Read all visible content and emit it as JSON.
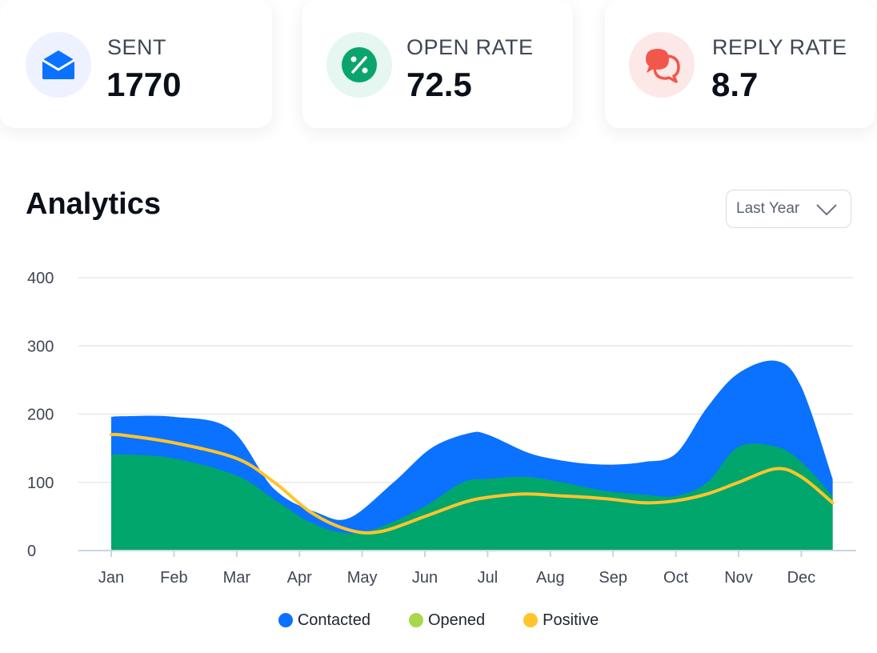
{
  "stats": [
    {
      "label": "SENT",
      "value": "1770",
      "icon": "envelope-icon",
      "icon_color": "#0a72ff",
      "icon_bg": "#eef1ff"
    },
    {
      "label": "OPEN RATE",
      "value": "72.5",
      "icon": "percent-icon",
      "icon_color": "#0aa56b",
      "icon_bg": "#e5f7f0"
    },
    {
      "label": "REPLY RATE",
      "value": "8.7",
      "icon": "chat-bubbles-icon",
      "icon_color": "#f2574c",
      "icon_bg": "#fde8e8"
    }
  ],
  "analytics": {
    "title": "Analytics",
    "period_selected": "Last Year"
  },
  "chart_data": {
    "type": "area",
    "categories": [
      "Jan",
      "Feb",
      "Mar",
      "Apr",
      "May",
      "Jun",
      "Jul",
      "Aug",
      "Sep",
      "Oct",
      "Nov",
      "Dec"
    ],
    "ylim": [
      0,
      400
    ],
    "yticks": [
      0,
      100,
      200,
      300,
      400
    ],
    "grid": true,
    "legend_position": "bottom-center",
    "series": [
      {
        "name": "Contacted",
        "color": "#0a72ff",
        "x": [
          0.0,
          0.2,
          1.0,
          1.9,
          2.6,
          3.3,
          3.8,
          4.5,
          5.1,
          5.7,
          6.0,
          6.6,
          7.0,
          7.5,
          8.0,
          8.5,
          9.0,
          9.5,
          10.0,
          10.6,
          11.0,
          11.5
        ],
        "values": [
          196,
          197,
          196,
          178,
          90,
          55,
          48,
          100,
          150,
          172,
          170,
          145,
          135,
          128,
          126,
          130,
          142,
          210,
          260,
          278,
          240,
          105
        ]
      },
      {
        "name": "Opened",
        "color": "#00a66b",
        "x": [
          0.0,
          0.2,
          1.0,
          2.0,
          2.6,
          3.2,
          3.8,
          4.3,
          5.0,
          5.6,
          6.0,
          6.6,
          7.2,
          7.6,
          8.0,
          8.5,
          9.0,
          9.5,
          10.0,
          10.6,
          11.0,
          11.5
        ],
        "values": [
          140,
          141,
          135,
          110,
          75,
          40,
          25,
          35,
          65,
          100,
          105,
          108,
          100,
          92,
          86,
          82,
          80,
          100,
          152,
          152,
          130,
          80
        ]
      },
      {
        "name": "Positive",
        "color": "#ffc42e",
        "x": [
          0.0,
          0.2,
          1.0,
          2.0,
          2.6,
          3.2,
          3.8,
          4.3,
          5.0,
          5.6,
          6.0,
          6.6,
          7.2,
          7.6,
          8.0,
          8.5,
          9.0,
          9.5,
          10.0,
          10.6,
          11.0,
          11.5
        ],
        "values": [
          170,
          169,
          158,
          135,
          100,
          55,
          30,
          28,
          50,
          70,
          78,
          83,
          80,
          78,
          75,
          70,
          73,
          83,
          100,
          120,
          108,
          70
        ]
      }
    ]
  }
}
